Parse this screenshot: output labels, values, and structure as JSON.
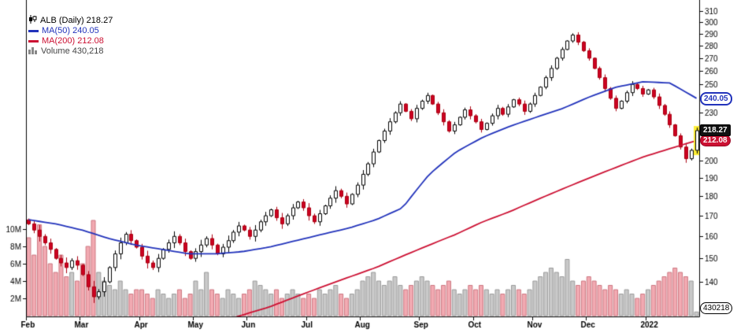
{
  "legend": {
    "symbol_line": "ALB (Daily) 218.27",
    "ma50_label": "MA(50) 240.05",
    "ma200_label": "MA(200) 212.08",
    "volume_label": "Volume 430,218"
  },
  "callouts": {
    "ma50": "240.05",
    "last_price": "218.27",
    "ma200": "212.08",
    "volume": "430218"
  },
  "chart_data": {
    "type": "candlestick",
    "symbol": "ALB",
    "period": "Daily",
    "scale": "log",
    "last_price": 218.27,
    "ma50_value": 240.05,
    "ma200_value": 212.08,
    "last_volume": 430218,
    "months": [
      {
        "label": "Feb",
        "index": 0
      },
      {
        "label": "Mar",
        "index": 10
      },
      {
        "label": "Apr",
        "index": 21
      },
      {
        "label": "May",
        "index": 31
      },
      {
        "label": "Jun",
        "index": 41
      },
      {
        "label": "Jul",
        "index": 52
      },
      {
        "label": "Aug",
        "index": 62
      },
      {
        "label": "Sep",
        "index": 73
      },
      {
        "label": "Oct",
        "index": 83
      },
      {
        "label": "Nov",
        "index": 94
      },
      {
        "label": "Dec",
        "index": 104
      },
      {
        "label": "2022",
        "index": 115
      }
    ],
    "closes": [
      166,
      163,
      160,
      157,
      154,
      150,
      148,
      146,
      149,
      147,
      143,
      138,
      134,
      136,
      140,
      146,
      152,
      157,
      161,
      158,
      155,
      151,
      148,
      146,
      150,
      154,
      157,
      160,
      157,
      153,
      150,
      153,
      156,
      159,
      156,
      152,
      155,
      158,
      162,
      165,
      163,
      160,
      163,
      167,
      170,
      173,
      169,
      166,
      170,
      174,
      177,
      174,
      170,
      167,
      171,
      175,
      179,
      183,
      180,
      176,
      181,
      186,
      192,
      198,
      205,
      212,
      218,
      224,
      230,
      236,
      231,
      226,
      233,
      238,
      242,
      236,
      230,
      224,
      218,
      222,
      227,
      232,
      228,
      224,
      219,
      223,
      228,
      233,
      229,
      234,
      239,
      236,
      231,
      236,
      242,
      248,
      255,
      262,
      270,
      277,
      284,
      289,
      283,
      276,
      270,
      262,
      255,
      247,
      240,
      233,
      238,
      244,
      250,
      247,
      243,
      246,
      241,
      235,
      229,
      222,
      215,
      208,
      201,
      206,
      218.27
    ],
    "first_open": 168,
    "volumes_millions": [
      9,
      7,
      10.5,
      8,
      6,
      5,
      7,
      4.5,
      5,
      4,
      6,
      8,
      11,
      5,
      4,
      3.5,
      3,
      4,
      3,
      2.5,
      3,
      3,
      2.5,
      2,
      3,
      2.5,
      2,
      2.5,
      3,
      2,
      2.5,
      4,
      3,
      5,
      3,
      2.5,
      2,
      3,
      2.5,
      2,
      2.5,
      3,
      4,
      3.5,
      3,
      2.5,
      3,
      2,
      2.5,
      3,
      2.5,
      2,
      2.5,
      2,
      3,
      2.5,
      3,
      3.5,
      2.5,
      2,
      2.5,
      3,
      4,
      4.5,
      5,
      4,
      3.5,
      4,
      4.5,
      3.5,
      3,
      3.5,
      4,
      4.5,
      4,
      3.5,
      3,
      3.5,
      4,
      3,
      2.5,
      3,
      3.5,
      3,
      3.5,
      3,
      2.5,
      3,
      2.5,
      3,
      3.5,
      3,
      2.5,
      3,
      4,
      4.5,
      5,
      5.5,
      5,
      4.5,
      6.5,
      4,
      3.5,
      4,
      4.5,
      4,
      3.5,
      3,
      3.5,
      3,
      2.5,
      3,
      2.5,
      2,
      2.5,
      3,
      3.5,
      4,
      4.5,
      5,
      5.5,
      5,
      4.5,
      4,
      0.43
    ],
    "ma50_anchors": [
      168,
      166,
      163,
      159,
      156,
      154,
      152,
      152,
      153,
      155,
      158,
      161,
      164,
      168,
      174,
      192,
      205,
      214,
      221,
      227,
      233,
      241,
      248,
      252,
      251,
      240
    ],
    "ma200_anchors": [
      108,
      110,
      112,
      114,
      116,
      118,
      121,
      124,
      127,
      130,
      134,
      138,
      142,
      146,
      151,
      156,
      161,
      167,
      172,
      178,
      184,
      190,
      196,
      202,
      207,
      212
    ],
    "price_ticks": [
      140,
      150,
      160,
      170,
      180,
      190,
      200,
      230,
      250,
      260,
      270,
      280,
      290,
      300,
      310
    ],
    "volume_ticks": [
      {
        "label": "2M",
        "value": 2
      },
      {
        "label": "4M",
        "value": 4
      },
      {
        "label": "6M",
        "value": 6
      },
      {
        "label": "8M",
        "value": 8
      },
      {
        "label": "10M",
        "value": 10
      }
    ],
    "ylim": [
      126,
      311
    ],
    "colors": {
      "up_fill": "#ffffff",
      "up_stroke": "#000000",
      "down_fill": "#cc0022",
      "down_stroke": "#aa0011",
      "ma50": "#2233bb",
      "ma200": "#cc1133",
      "vol_up_fill": "#c9c9c9",
      "vol_up_stroke": "#9a9a9a",
      "vol_down_fill": "#f2aab2",
      "vol_down_stroke": "#cc7780",
      "highlight": "#ffee33",
      "axis": "#000000"
    }
  }
}
